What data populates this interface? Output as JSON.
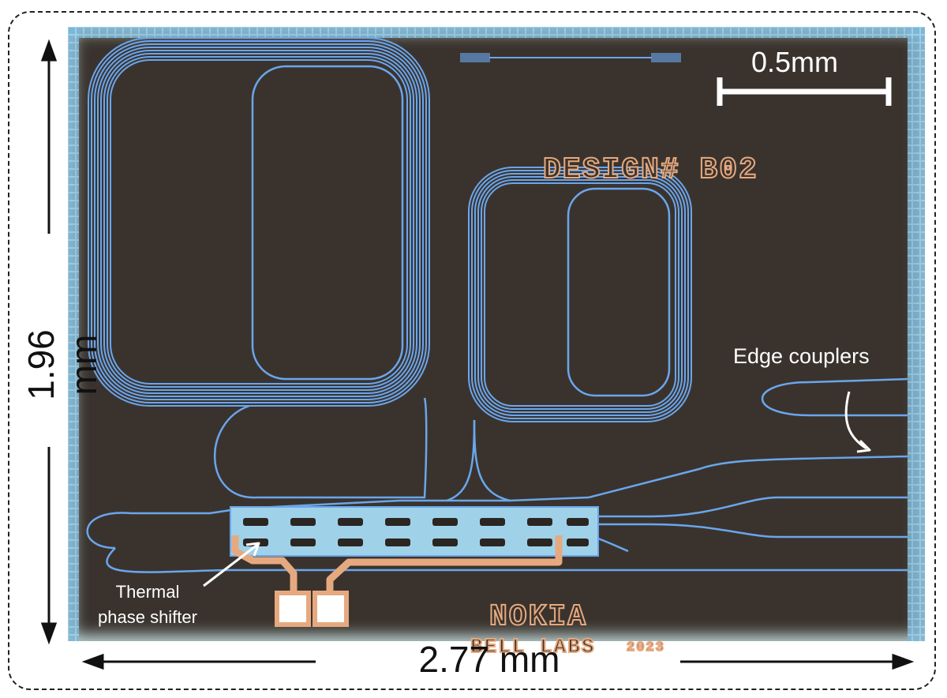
{
  "figure": {
    "height_label": "1.96 mm",
    "width_label": "2.77 mm",
    "scale_bar_label": "0.5mm",
    "design_label": "DESIGN# B02",
    "brand_line1": "NOKIA",
    "brand_line2": "BELL LABS",
    "year": "2023",
    "edge_couplers_label": "Edge couplers",
    "thermal_label_line1": "Thermal",
    "thermal_label_line2": "phase shifter"
  },
  "colors": {
    "chip_background": "#3a332d",
    "waveguide": "#6aa6ee",
    "heater_metal": "#e6a97f",
    "annotation": "#ffffff",
    "dimension": "#111111"
  }
}
